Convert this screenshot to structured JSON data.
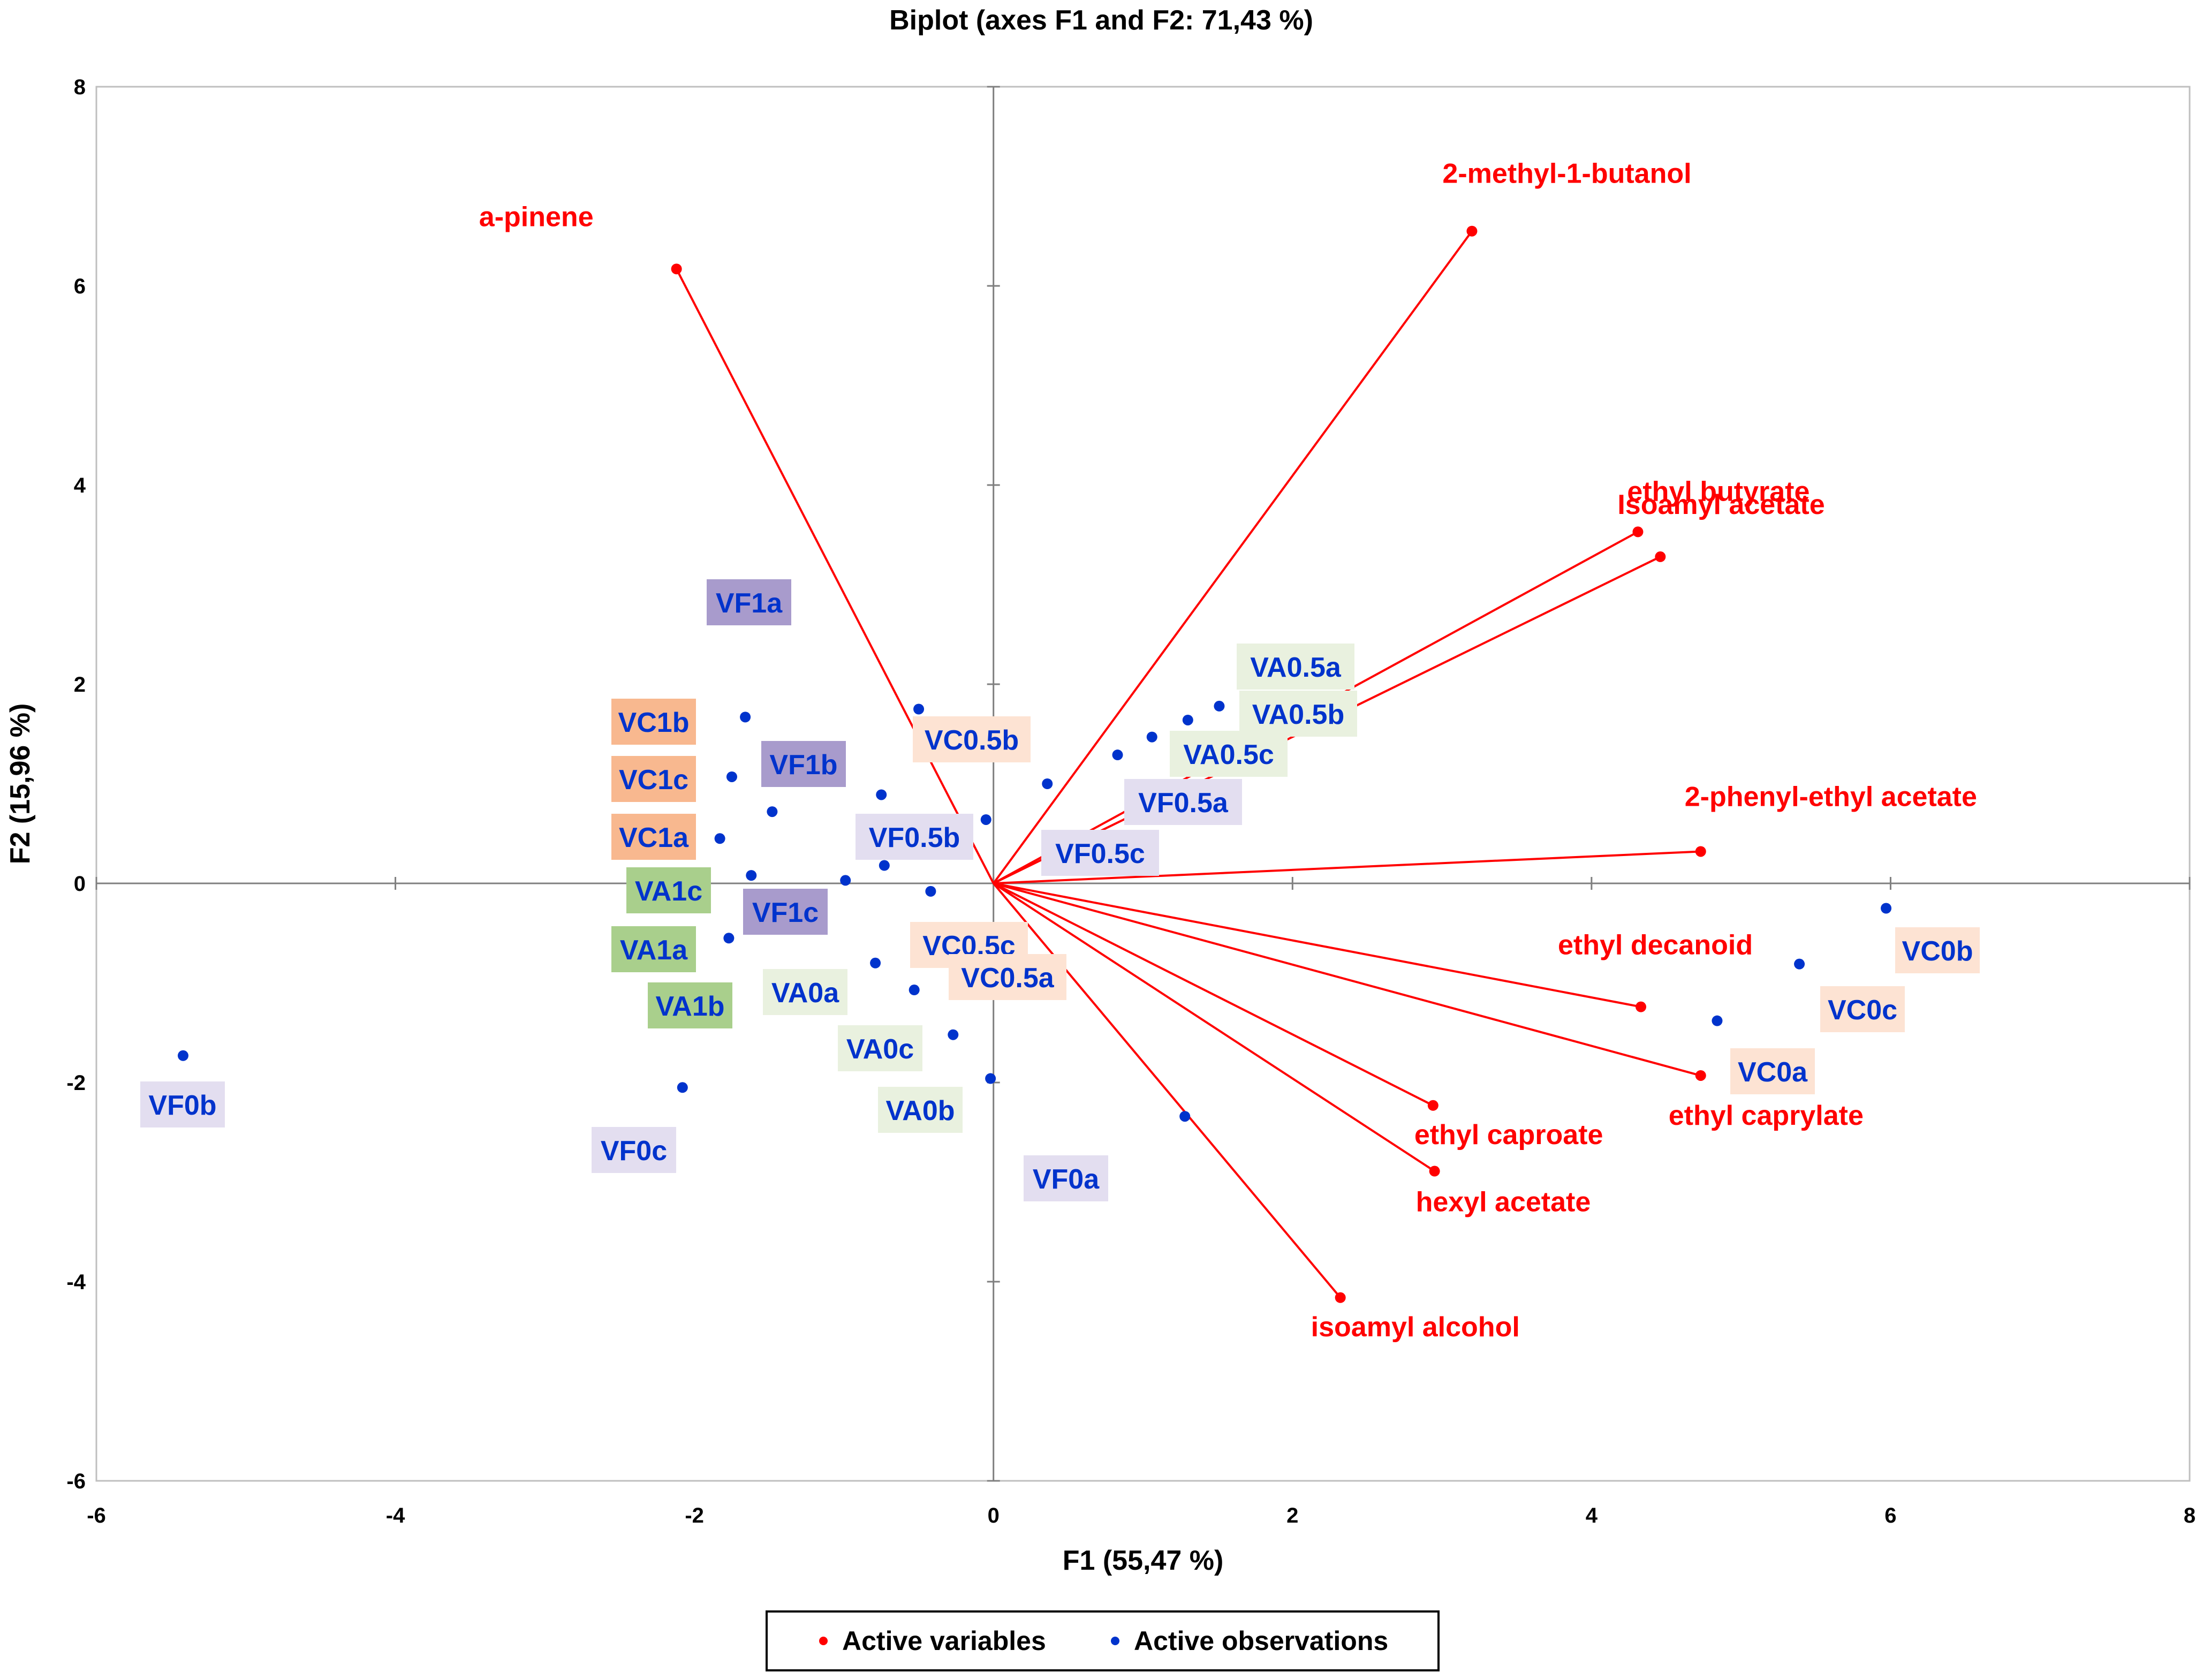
{
  "chart_data": {
    "type": "scatter",
    "title": "Biplot (axes F1 and F2: 71,43 %)",
    "xlabel": "F1 (55,47 %)",
    "ylabel": "F2 (15,96 %)",
    "xlim": [
      -6,
      8
    ],
    "ylim": [
      -6,
      8
    ],
    "xticks": [
      "-6",
      "-4",
      "-2",
      "0",
      "2",
      "4",
      "6",
      "8"
    ],
    "yticks": [
      "-6",
      "-4",
      "-2",
      "0",
      "2",
      "4",
      "6",
      "8"
    ],
    "grid": false,
    "legend_position": "bottom",
    "legend": {
      "variables": "Active variables",
      "observations": "Active observations"
    },
    "colors": {
      "variables": "#ff0000",
      "observations": "#0033cc",
      "VC_light": "#fde3d3",
      "VC_dark": "#f8b88f",
      "VA_light": "#e9f1df",
      "VA_dark": "#a9cf8c",
      "VF_light": "#e3def0",
      "VF_dark": "#a89bcc"
    },
    "variables": [
      {
        "label": "a-pinene",
        "x": -2.12,
        "y": 6.17
      },
      {
        "label": "2-methyl-1-butanol",
        "x": 3.2,
        "y": 6.55
      },
      {
        "label": "ethyl butyrate",
        "x": 4.31,
        "y": 3.53
      },
      {
        "label": "Isoamyl acetate",
        "x": 4.46,
        "y": 3.28
      },
      {
        "label": "2-phenyl-ethyl acetate",
        "x": 4.73,
        "y": 0.32
      },
      {
        "label": "ethyl decanoid",
        "x": 4.33,
        "y": -1.24
      },
      {
        "label": "ethyl caprylate",
        "x": 4.73,
        "y": -1.93
      },
      {
        "label": "ethyl caproate",
        "x": 2.94,
        "y": -2.23
      },
      {
        "label": "hexyl acetate",
        "x": 2.95,
        "y": -2.89
      },
      {
        "label": "isoamyl alcohol",
        "x": 2.32,
        "y": -4.16
      }
    ],
    "observations": [
      {
        "label": "VF1a",
        "x": -1.66,
        "y": 1.67,
        "box": "VF_dark"
      },
      {
        "label": "VC1b",
        "x": -1.75,
        "y": 1.07,
        "box": "VC_dark"
      },
      {
        "label": "VF1b",
        "x": -1.48,
        "y": 0.72,
        "box": "VF_dark"
      },
      {
        "label": "VC1c",
        "x": -1.83,
        "y": 0.45,
        "box": "VC_dark"
      },
      {
        "label": "VC1a",
        "x": -1.62,
        "y": 0.08,
        "box": "VC_dark"
      },
      {
        "label": "VA1c",
        "x": -0.99,
        "y": 0.03,
        "box": "VA_dark"
      },
      {
        "label": "VF1c",
        "x": -1.77,
        "y": -0.55,
        "box": "VF_dark"
      },
      {
        "label": "VA1a",
        "x": -2.08,
        "y": -2.05,
        "box": "VA_dark"
      },
      {
        "label": "VA1b",
        "x": -0.79,
        "y": -0.8,
        "box": "VA_dark"
      },
      {
        "label": "VC0.5b",
        "x": -0.5,
        "y": 1.75,
        "box": "VC_light"
      },
      {
        "label": "VF0.5b",
        "x": -0.75,
        "y": 0.89,
        "box": "VF_light"
      },
      {
        "label": "VC0.5c",
        "x": -0.42,
        "y": -0.08,
        "box": "VC_light"
      },
      {
        "label": "VC0.5a",
        "x": -0.27,
        "y": -1.52,
        "box": "VC_light"
      },
      {
        "label": "VA0a",
        "x": -0.53,
        "y": -1.07,
        "box": "VA_light"
      },
      {
        "label": "VA0c",
        "x": -0.73,
        "y": 0.18,
        "box": "VA_light"
      },
      {
        "label": "VA0b",
        "x": -0.02,
        "y": -1.96,
        "box": "VA_light"
      },
      {
        "label": "VA0.5a",
        "x": 1.51,
        "y": 1.78,
        "box": "VA_light"
      },
      {
        "label": "VA0.5b",
        "x": 1.3,
        "y": 1.64,
        "box": "VA_light"
      },
      {
        "label": "VA0.5c",
        "x": 1.06,
        "y": 1.47,
        "box": "VA_light"
      },
      {
        "label": "VF0.5a",
        "x": 0.83,
        "y": 1.29,
        "box": "VF_light"
      },
      {
        "label": "VF0.5c",
        "x": 0.36,
        "y": 1.0,
        "box": "VF_light"
      },
      {
        "label": "VF0b",
        "x": -5.42,
        "y": -1.73,
        "box": "VF_light"
      },
      {
        "label": "VF0c",
        "x": -0.05,
        "y": 0.64,
        "box": "VF_light"
      },
      {
        "label": "VF0a",
        "x": 1.28,
        "y": -2.34,
        "box": "VF_light"
      },
      {
        "label": "VC0b",
        "x": 5.97,
        "y": -0.25,
        "box": "VC_light"
      },
      {
        "label": "VC0c",
        "x": 5.39,
        "y": -0.81,
        "box": "VC_light"
      },
      {
        "label": "VC0a",
        "x": 4.84,
        "y": -1.38,
        "box": "VC_light"
      }
    ]
  }
}
